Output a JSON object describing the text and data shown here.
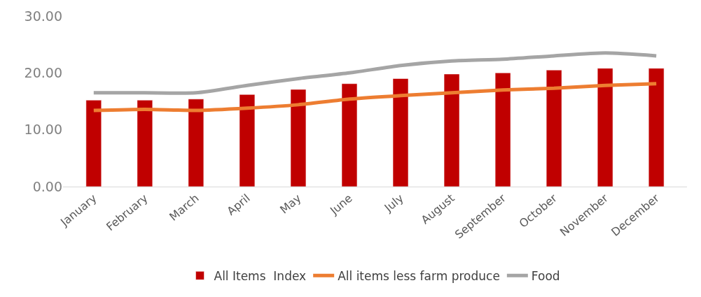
{
  "chart_data": {
    "type": "bar",
    "categories": [
      "January",
      "February",
      "March",
      "April",
      "May",
      "June",
      "July",
      "August",
      "September",
      "October",
      "November",
      "December"
    ],
    "series": [
      {
        "name": "All Items  Index",
        "color": "#c00000",
        "values": [
          15.2,
          15.2,
          15.4,
          16.2,
          17.1,
          18.1,
          19.0,
          19.8,
          20.0,
          20.5,
          20.8,
          20.8
        ]
      },
      {
        "name": "All items less farm produce",
        "type": "line",
        "color": "#ed7d31",
        "values": [
          13.4,
          13.6,
          13.4,
          13.8,
          14.4,
          15.4,
          16.0,
          16.5,
          17.0,
          17.3,
          17.8,
          18.1
        ]
      },
      {
        "name": "Food",
        "type": "line",
        "color": "#a5a5a5",
        "values": [
          16.5,
          16.5,
          16.5,
          17.8,
          19.0,
          20.0,
          21.3,
          22.1,
          22.4,
          23.0,
          23.5,
          23.0
        ]
      }
    ],
    "ylim": [
      0,
      30
    ],
    "yticks": [
      {
        "value": 0,
        "label": "0.00"
      },
      {
        "value": 10,
        "label": "10.00"
      },
      {
        "value": 20,
        "label": "20.00"
      },
      {
        "value": 30,
        "label": "30.00"
      }
    ],
    "grid": false,
    "legend": "bottom",
    "marker": "none",
    "line_style": "solid"
  }
}
